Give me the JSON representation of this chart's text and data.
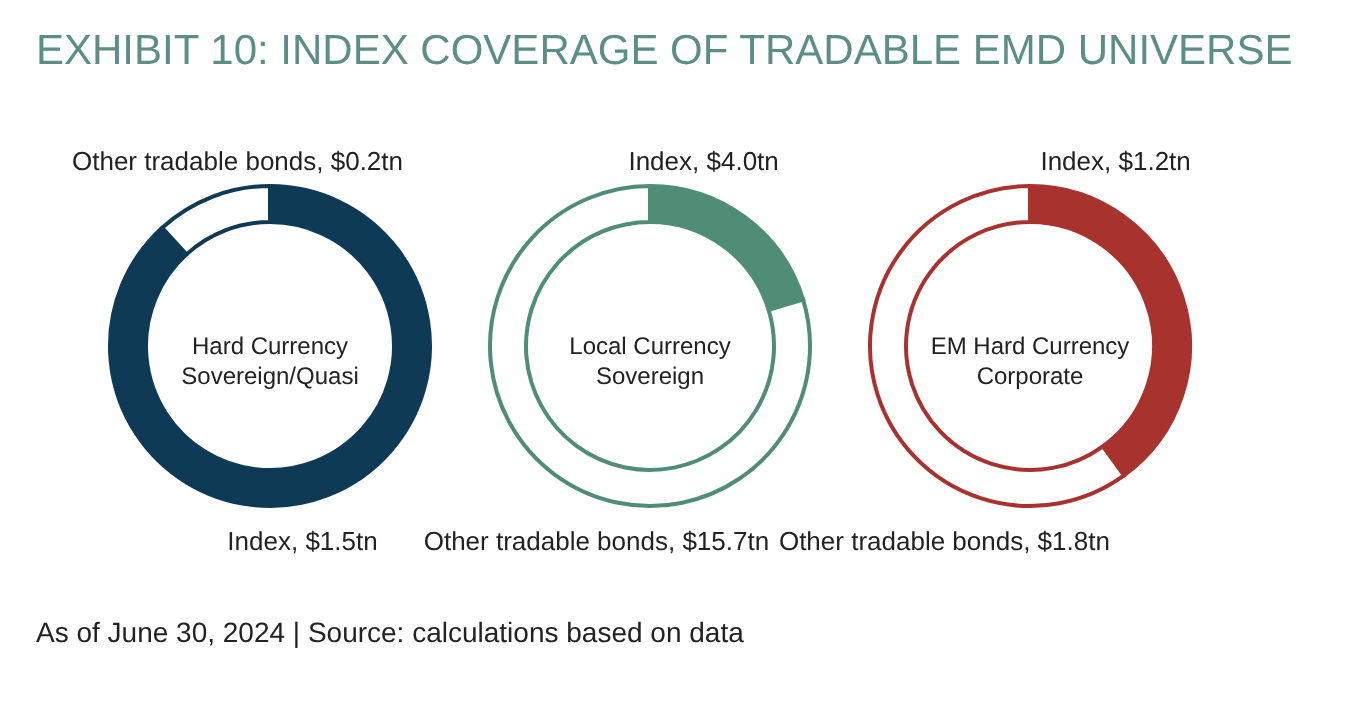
{
  "chart_data": [
    {
      "type": "donut",
      "title": "EXHIBIT 10: INDEX COVERAGE OF TRADABLE EMD UNIVERSE",
      "categories": [
        "Index",
        "Other tradable bonds"
      ],
      "values": [
        1.5,
        0.2
      ],
      "value_labels": [
        "$1.5tn",
        "$0.2tn"
      ],
      "colors": [
        "#0e3a55",
        "#ffffff"
      ],
      "annotations": [
        "Hard Currency\nSovereign/Quasi",
        "As of June 30, 2024 | Source: calculations based on data"
      ]
    },
    {
      "type": "donut",
      "categories": [
        "Index",
        "Other tradable bonds"
      ],
      "values": [
        4.0,
        15.7
      ],
      "value_labels": [
        "$4.0tn",
        "$15.7tn"
      ],
      "colors": [
        "#4f8d76",
        "#ffffff"
      ],
      "annotations": [
        "Local Currency\nSovereign"
      ]
    },
    {
      "type": "donut",
      "categories": [
        "Index",
        "Other tradable bonds"
      ],
      "values": [
        1.2,
        1.8
      ],
      "value_labels": [
        "$1.2tn",
        "$1.8tn"
      ],
      "colors": [
        "#a8322e",
        "#ffffff"
      ],
      "annotations": [
        "EM Hard Currency\nCorporate"
      ]
    }
  ]
}
